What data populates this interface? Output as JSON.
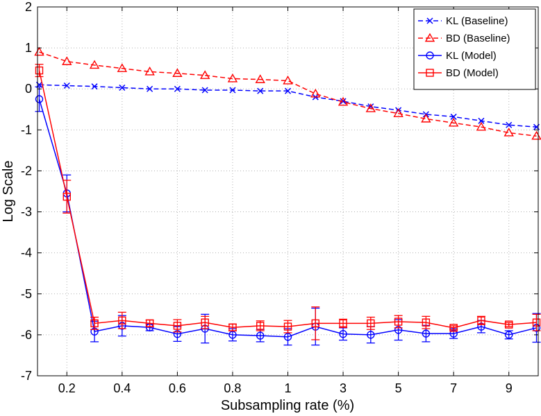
{
  "chart_data": {
    "type": "line",
    "xlabel": "Subsampling rate (%)",
    "ylabel": "Log Scale",
    "ylim": [
      -7,
      2
    ],
    "yticks": [
      -7,
      -6,
      -5,
      -4,
      -3,
      -2,
      -1,
      0,
      1,
      2
    ],
    "x": [
      0.1,
      0.2,
      0.3,
      0.4,
      0.5,
      0.6,
      0.7,
      0.8,
      0.9,
      1,
      2,
      3,
      4,
      5,
      6,
      7,
      8,
      9,
      10
    ],
    "x_tick_labels": [
      "0.2",
      "0.4",
      "0.6",
      "0.8",
      "1",
      "3",
      "5",
      "7",
      "9"
    ],
    "grid": true,
    "legend_position": "top-right",
    "series": [
      {
        "name": "KL (Baseline)",
        "color": "#0000ff",
        "line_style": "dashed",
        "marker": "x",
        "values": [
          0.1,
          0.08,
          0.06,
          0.03,
          0.0,
          0.0,
          -0.03,
          -0.03,
          -0.05,
          -0.05,
          -0.2,
          -0.3,
          -0.43,
          -0.52,
          -0.62,
          -0.68,
          -0.78,
          -0.88,
          -0.93
        ]
      },
      {
        "name": "BD (Baseline)",
        "color": "#ff0000",
        "line_style": "dashed",
        "marker": "triangle",
        "values": [
          0.9,
          0.67,
          0.58,
          0.5,
          0.42,
          0.38,
          0.33,
          0.25,
          0.23,
          0.2,
          -0.12,
          -0.32,
          -0.48,
          -0.6,
          -0.73,
          -0.83,
          -0.93,
          -1.07,
          -1.15
        ]
      },
      {
        "name": "KL (Model)",
        "color": "#0000ff",
        "line_style": "solid",
        "marker": "circle",
        "values": [
          -0.25,
          -2.55,
          -5.92,
          -5.78,
          -5.82,
          -5.98,
          -5.85,
          -6.0,
          -6.02,
          -6.05,
          -5.8,
          -5.98,
          -6.0,
          -5.88,
          -5.97,
          -5.97,
          -5.8,
          -6.0,
          -5.83
        ],
        "errors": [
          0.3,
          0.45,
          0.25,
          0.25,
          0.08,
          0.18,
          0.35,
          0.15,
          0.15,
          0.2,
          0.45,
          0.15,
          0.2,
          0.25,
          0.2,
          0.12,
          0.15,
          0.1,
          0.35
        ]
      },
      {
        "name": "BD (Model)",
        "color": "#ff0000",
        "line_style": "solid",
        "marker": "square",
        "values": [
          0.45,
          -2.63,
          -5.72,
          -5.65,
          -5.72,
          -5.78,
          -5.7,
          -5.82,
          -5.78,
          -5.8,
          -5.72,
          -5.72,
          -5.72,
          -5.68,
          -5.7,
          -5.83,
          -5.65,
          -5.75,
          -5.7
        ],
        "errors": [
          0.15,
          0.4,
          0.15,
          0.2,
          0.08,
          0.15,
          0.15,
          0.08,
          0.12,
          0.15,
          0.4,
          0.1,
          0.15,
          0.15,
          0.15,
          0.05,
          0.1,
          0.05,
          0.2
        ]
      }
    ]
  }
}
